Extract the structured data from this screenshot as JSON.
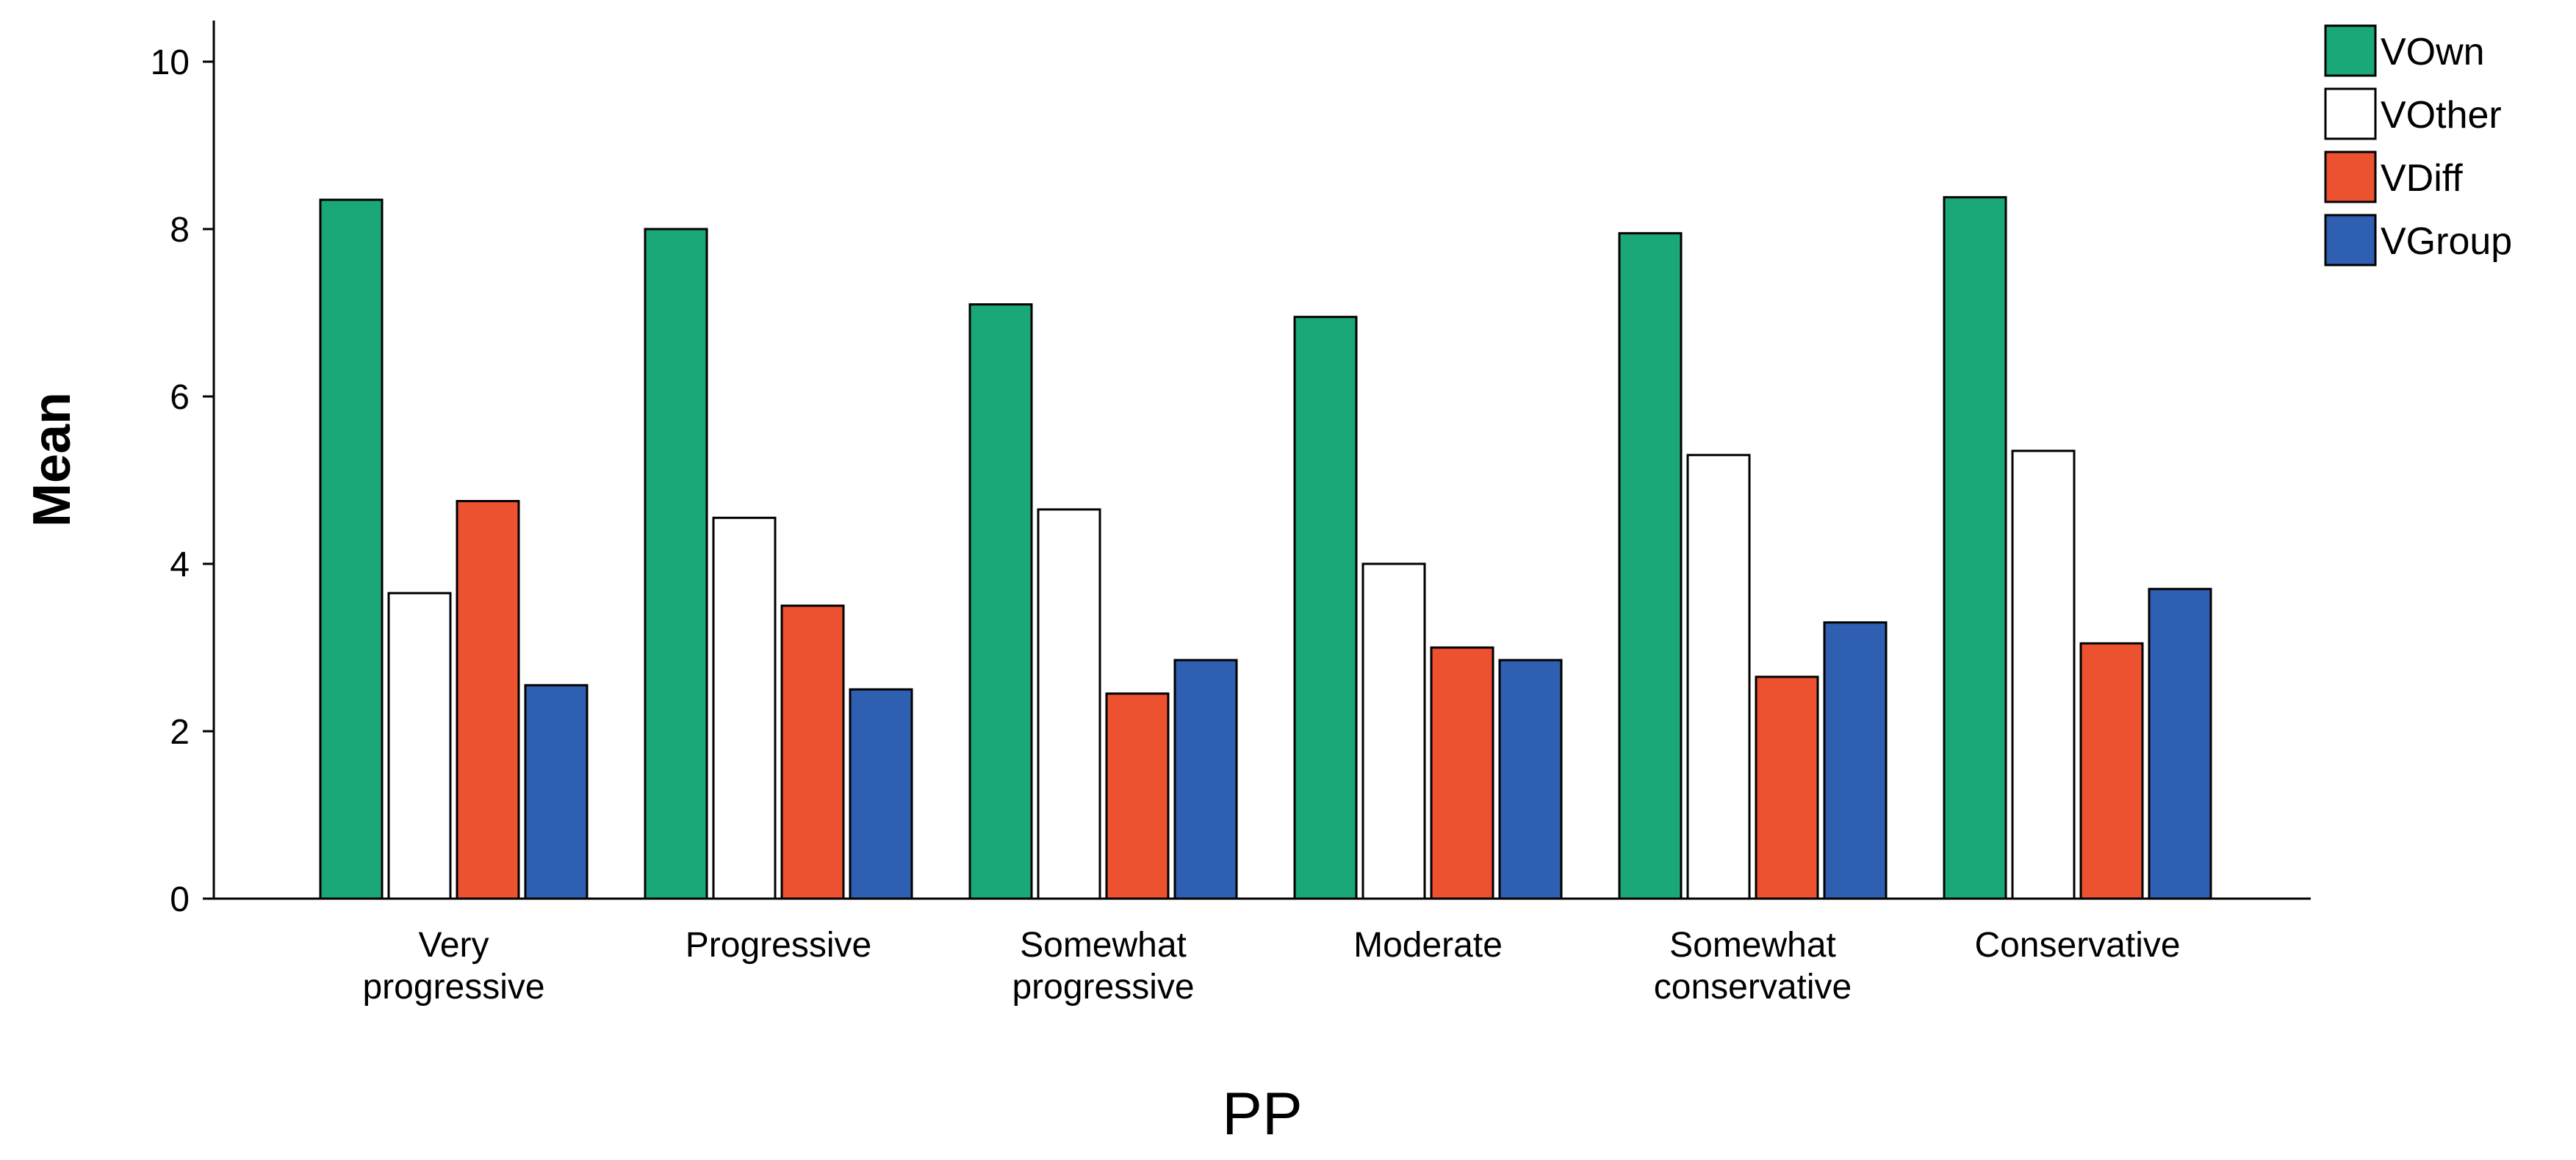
{
  "chart_data": {
    "type": "bar",
    "title": "",
    "xlabel": "PP",
    "ylabel": "Mean",
    "ylim": [
      0,
      10.5
    ],
    "yticks": [
      0,
      2,
      4,
      6,
      8,
      10
    ],
    "ytick_labels": [
      "0",
      "2",
      "4",
      "6",
      "8",
      "10"
    ],
    "categories": [
      [
        "Very",
        "progressive"
      ],
      [
        "Progressive"
      ],
      [
        "Somewhat",
        "progressive"
      ],
      [
        "Moderate"
      ],
      [
        "Somewhat",
        "conservative"
      ],
      [
        "Conservative"
      ]
    ],
    "series": [
      {
        "name": "VOwn",
        "color": "#1aa878",
        "values": [
          8.35,
          8.0,
          7.1,
          6.95,
          7.95,
          8.38
        ]
      },
      {
        "name": "VOther",
        "color": "#ffffff",
        "values": [
          3.65,
          4.55,
          4.65,
          4.0,
          5.3,
          5.35
        ]
      },
      {
        "name": "VDiff",
        "color": "#ec5130",
        "values": [
          4.75,
          3.5,
          2.45,
          3.0,
          2.65,
          3.05
        ]
      },
      {
        "name": "VGroup",
        "color": "#2e5fb0",
        "values": [
          2.55,
          2.5,
          2.85,
          2.85,
          3.3,
          3.7
        ]
      }
    ],
    "legend_position": "top-right",
    "grid": false
  }
}
